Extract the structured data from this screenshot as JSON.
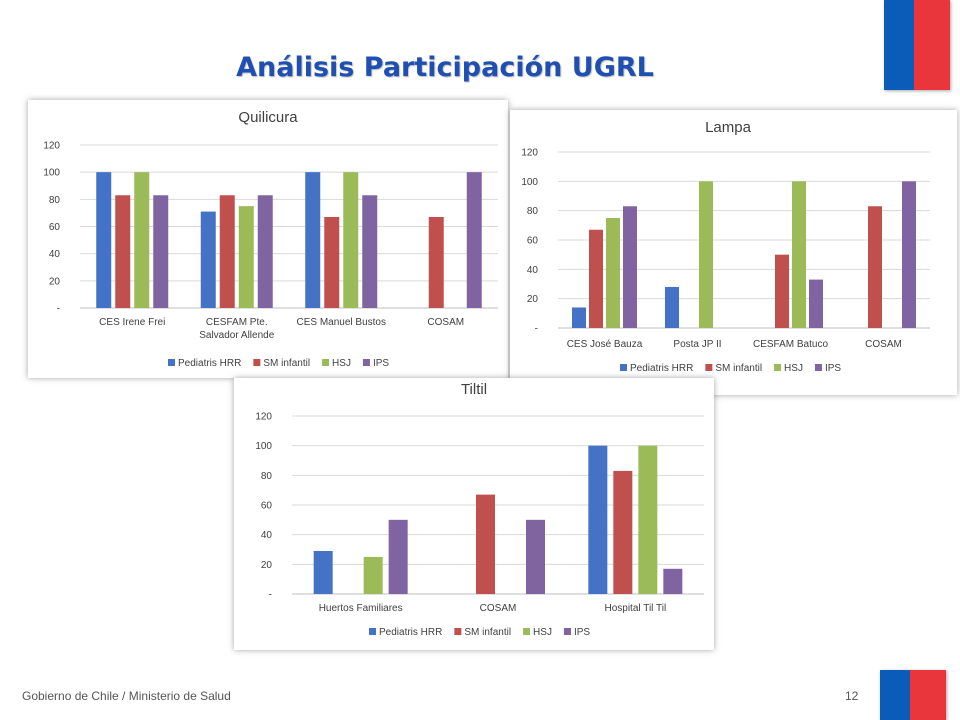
{
  "slide": {
    "title": "Análisis Participación  UGRL",
    "footer": "Gobierno de Chile / Ministerio de Salud",
    "page_number": "12"
  },
  "colors": {
    "title": "#1f4fb0",
    "flag_blue": "#0a5cb8",
    "flag_red": "#e8363c"
  },
  "chart_data": [
    {
      "type": "bar",
      "title": "Quilicura",
      "categories": [
        [
          "CES Irene Frei"
        ],
        [
          "CESFAM Pte.",
          "Salvador Allende"
        ],
        [
          "CES Manuel Bustos"
        ],
        [
          "COSAM"
        ]
      ],
      "series": [
        {
          "name": "Pediatris HRR",
          "color": "#4472c4",
          "values": [
            100,
            71,
            100,
            null
          ]
        },
        {
          "name": "SM infantil",
          "color": "#c0504d",
          "values": [
            83,
            83,
            67,
            67
          ]
        },
        {
          "name": "HSJ",
          "color": "#9bbb59",
          "values": [
            100,
            75,
            100,
            null
          ]
        },
        {
          "name": "IPS",
          "color": "#8064a2",
          "values": [
            83,
            83,
            83,
            100
          ]
        }
      ],
      "y_ticks": [
        "-",
        "20",
        "40",
        "60",
        "80",
        "100",
        "120"
      ],
      "ylim": [
        0,
        120
      ],
      "grid": true,
      "legend_position": "bottom"
    },
    {
      "type": "bar",
      "title": "Lampa",
      "categories": [
        [
          "CES José Bauza"
        ],
        [
          "Posta JP II"
        ],
        [
          "CESFAM Batuco"
        ],
        [
          "COSAM"
        ]
      ],
      "series": [
        {
          "name": "Pediatris HRR",
          "color": "#4472c4",
          "values": [
            14,
            28,
            null,
            null
          ]
        },
        {
          "name": "SM infantil",
          "color": "#c0504d",
          "values": [
            67,
            null,
            50,
            83
          ]
        },
        {
          "name": "HSJ",
          "color": "#9bbb59",
          "values": [
            75,
            100,
            100,
            null
          ]
        },
        {
          "name": "IPS",
          "color": "#8064a2",
          "values": [
            83,
            null,
            33,
            100
          ]
        }
      ],
      "y_ticks": [
        "-",
        "20",
        "40",
        "60",
        "80",
        "100",
        "120"
      ],
      "ylim": [
        0,
        120
      ],
      "grid": true,
      "legend_position": "bottom"
    },
    {
      "type": "bar",
      "title": "Tiltil",
      "categories": [
        [
          "Huertos Familiares"
        ],
        [
          "COSAM"
        ],
        [
          "Hospital Til Til"
        ]
      ],
      "series": [
        {
          "name": "Pediatris HRR",
          "color": "#4472c4",
          "values": [
            29,
            null,
            100
          ]
        },
        {
          "name": "SM infantil",
          "color": "#c0504d",
          "values": [
            null,
            67,
            83
          ]
        },
        {
          "name": "HSJ",
          "color": "#9bbb59",
          "values": [
            25,
            null,
            100
          ]
        },
        {
          "name": "IPS",
          "color": "#8064a2",
          "values": [
            50,
            50,
            17
          ]
        }
      ],
      "y_ticks": [
        "-",
        "20",
        "40",
        "60",
        "80",
        "100",
        "120"
      ],
      "ylim": [
        0,
        120
      ],
      "grid": true,
      "legend_position": "bottom"
    }
  ]
}
